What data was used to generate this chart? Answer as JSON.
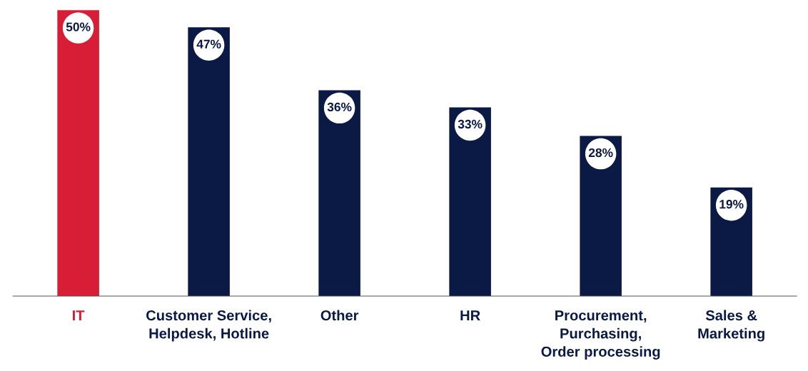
{
  "chart_data": {
    "type": "bar",
    "categories": [
      "IT",
      "Customer Service,\nHelpdesk, Hotline",
      "Other",
      "HR",
      "Procurement,\nPurchasing,\nOrder processing",
      "Sales &\nMarketing"
    ],
    "values": [
      50,
      47,
      36,
      33,
      28,
      19
    ],
    "colors": [
      "#d81e36",
      "#0b1a45",
      "#0b1a45",
      "#0b1a45",
      "#0b1a45",
      "#0b1a45"
    ],
    "value_labels": [
      "50%",
      "47%",
      "36%",
      "33%",
      "28%",
      "19%"
    ],
    "grid": false,
    "legend": false
  }
}
